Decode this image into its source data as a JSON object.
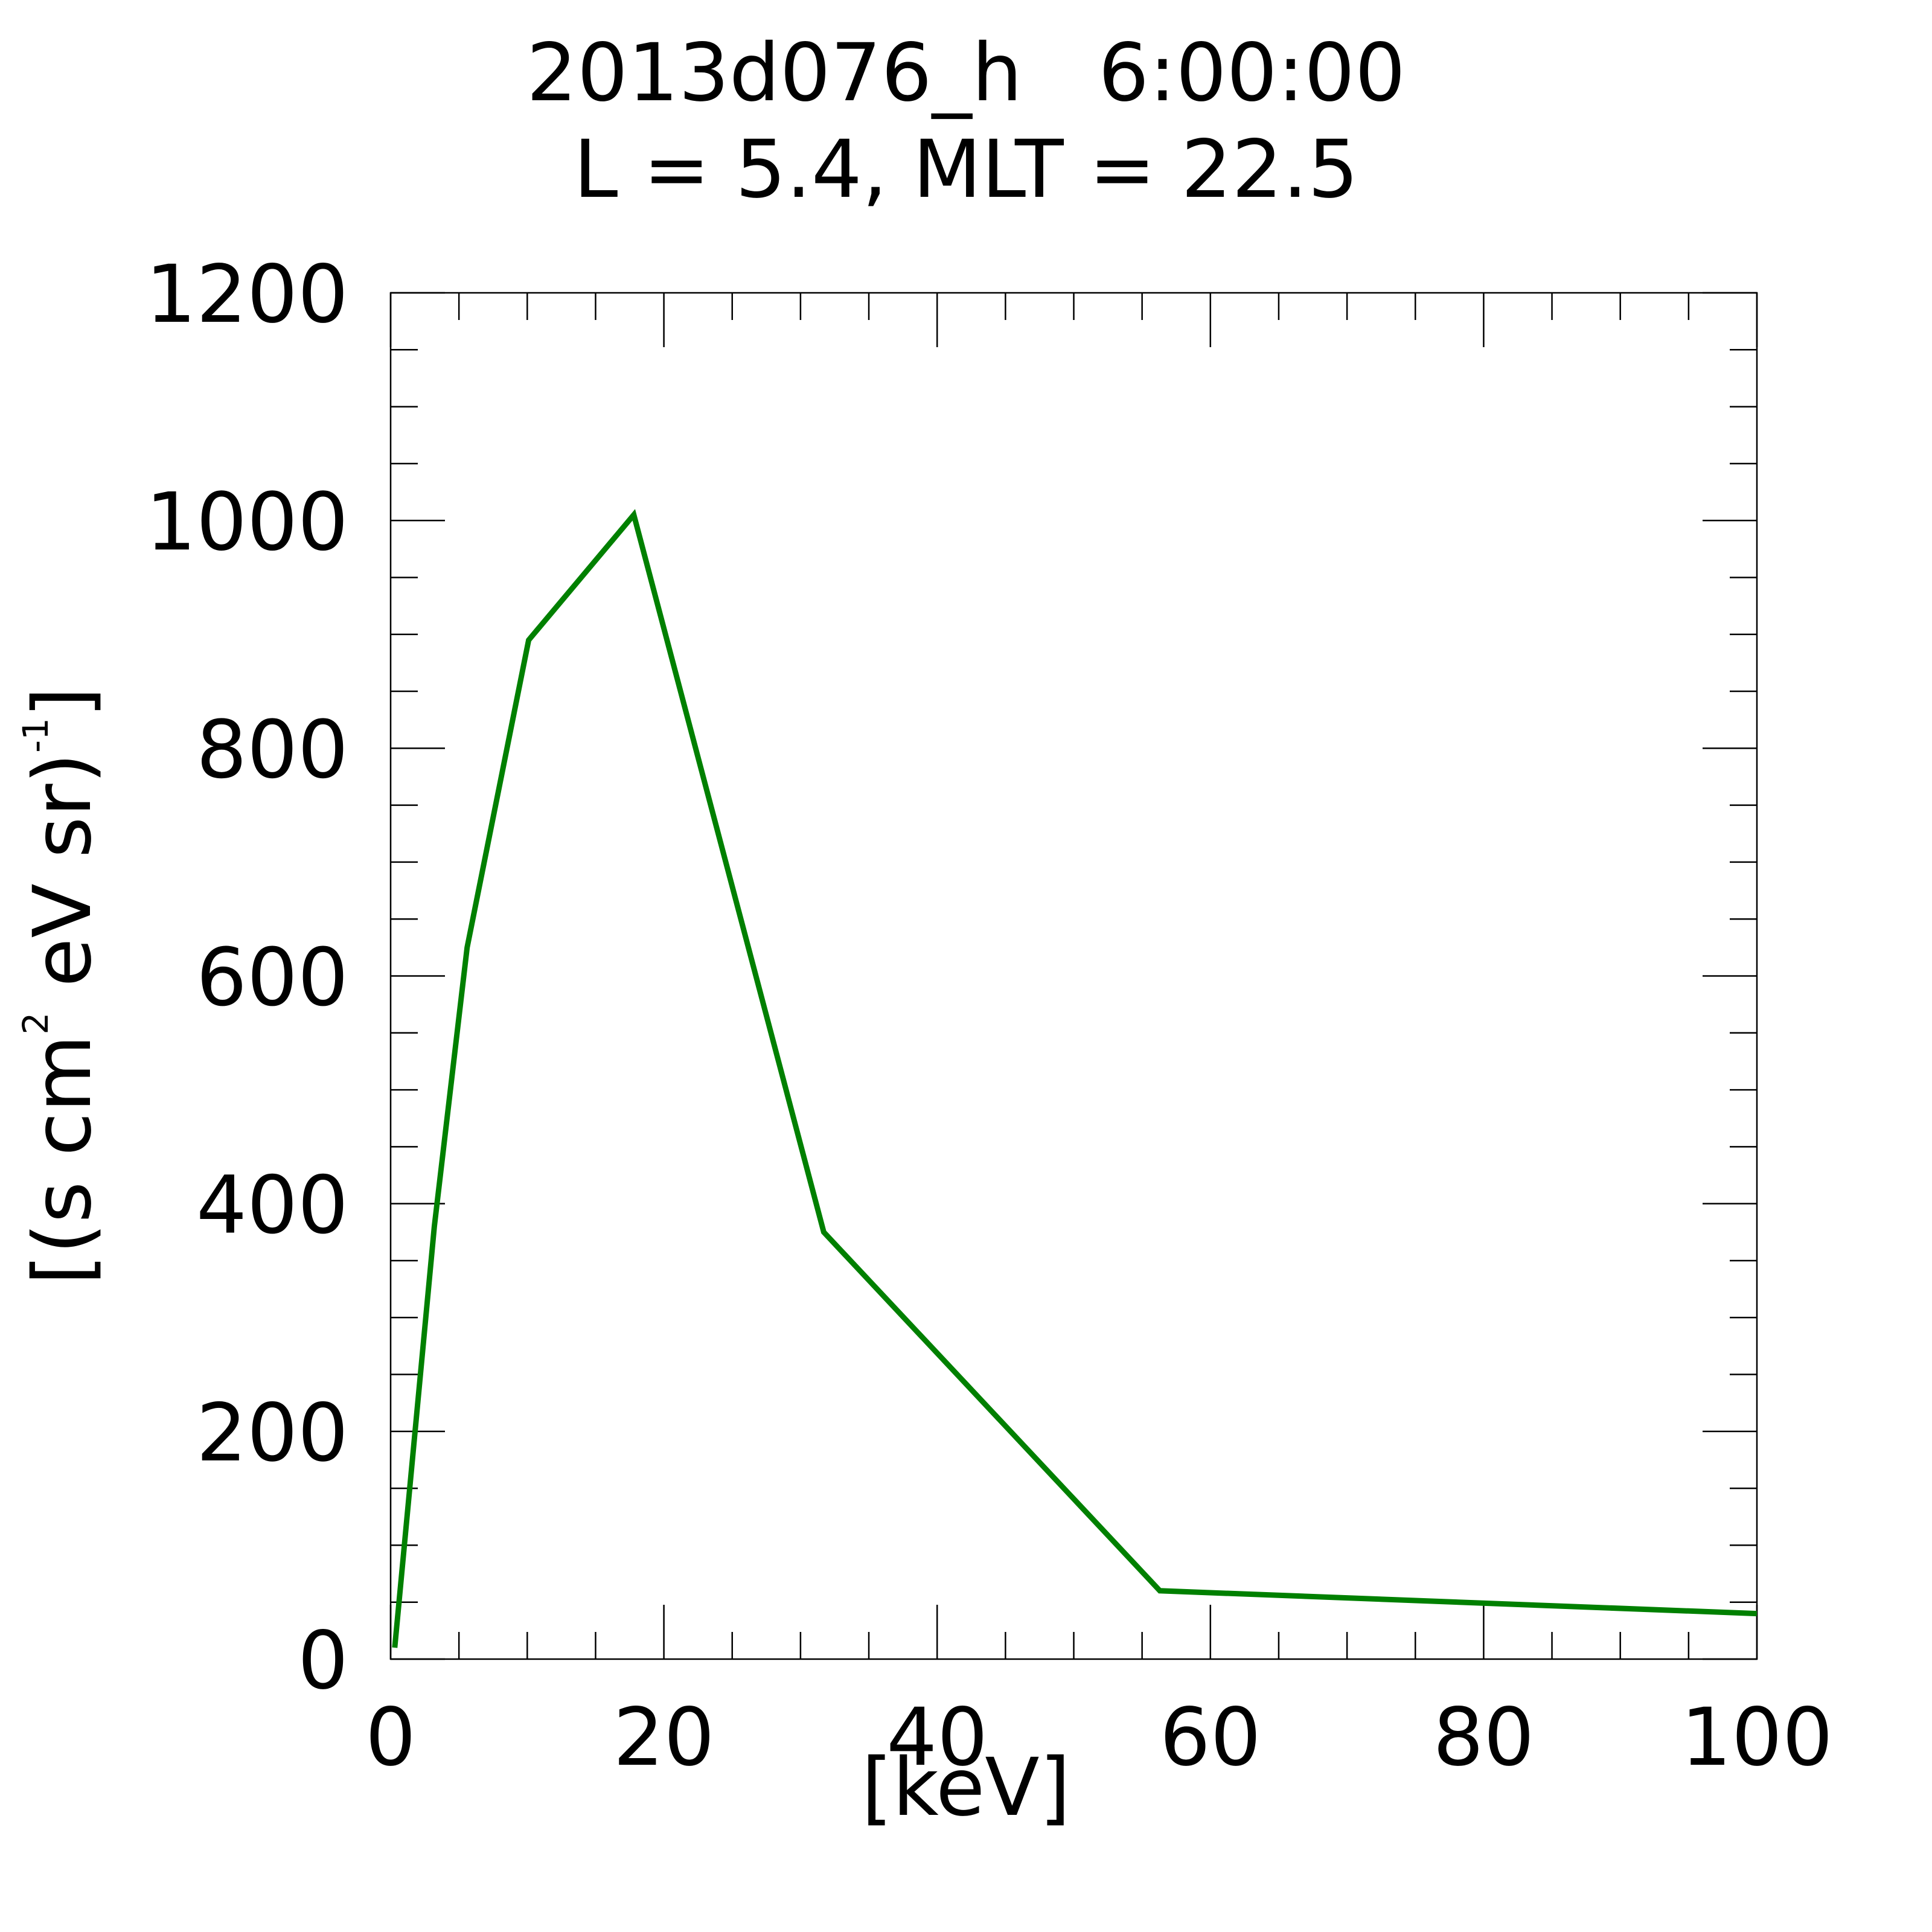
{
  "chart_data": {
    "type": "line",
    "title": "2013d076_h   6:00:00",
    "subtitle": "L = 5.4, MLT = 22.5",
    "xlabel": "[keV]",
    "ylabel": {
      "part1": "[(s cm",
      "sup1": "2",
      "part2": " eV sr)",
      "sup2": "-1",
      "part3": "]"
    },
    "xlim": [
      0,
      100
    ],
    "ylim": [
      0,
      1200
    ],
    "xticks": [
      0,
      20,
      40,
      60,
      80,
      100
    ],
    "yticks": [
      0,
      200,
      400,
      600,
      800,
      1000,
      1200
    ],
    "x_minor_step": 5,
    "y_minor_step": 50,
    "grid": false,
    "series": [
      {
        "color": "#008000",
        "x": [
          0.3,
          3.2,
          5.6,
          10.1,
          17.8,
          31.7,
          56.3,
          100
        ],
        "y": [
          10,
          380,
          625,
          895,
          1005,
          375,
          60,
          40
        ]
      }
    ]
  }
}
